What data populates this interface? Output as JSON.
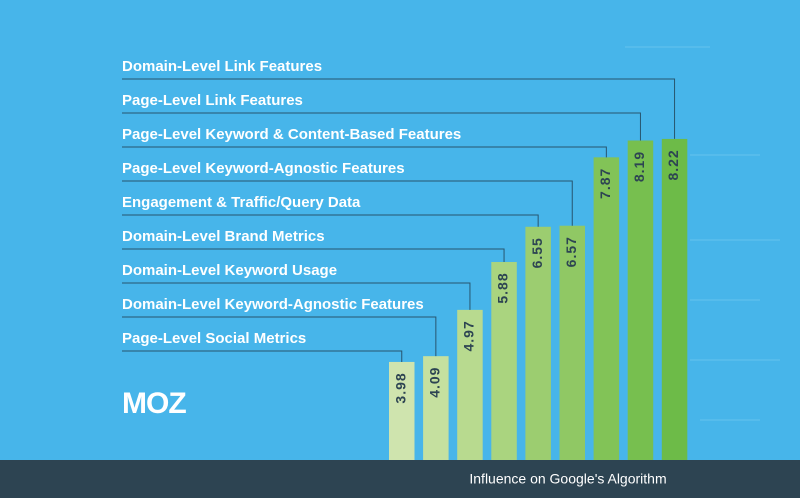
{
  "chart_data": {
    "type": "bar",
    "logo": "MOZ",
    "x_label": "Influence on Google's Algorithm",
    "categories": [
      "Page-Level Social Metrics",
      "Domain-Level Keyword-Agnostic Features",
      "Domain-Level Keyword Usage",
      "Domain-Level Brand Metrics",
      "Engagement & Traffic/Query Data",
      "Page-Level Keyword-Agnostic Features",
      "Page-Level Keyword & Content-Based Features",
      "Page-Level Link Features",
      "Domain-Level Link Features"
    ],
    "values": [
      3.98,
      4.09,
      4.97,
      5.88,
      6.55,
      6.57,
      7.87,
      8.19,
      8.22
    ],
    "colors": [
      "#cfe4ae",
      "#c5e09f",
      "#b8da8f",
      "#aad47f",
      "#9ccd70",
      "#90c864",
      "#82c357",
      "#77bf4f",
      "#6dbb48"
    ]
  }
}
